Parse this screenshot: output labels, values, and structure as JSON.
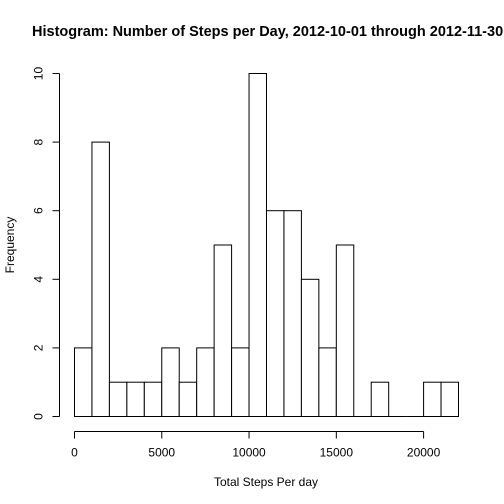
{
  "chart_data": {
    "type": "bar",
    "title": "Histogram: Number of Steps per Day, 2012-10-01 through 2012-11-30",
    "xlabel": "Total Steps Per day",
    "ylabel": "Frequency",
    "bins": [
      [
        0,
        1000
      ],
      [
        1000,
        2000
      ],
      [
        2000,
        3000
      ],
      [
        3000,
        4000
      ],
      [
        4000,
        5000
      ],
      [
        5000,
        6000
      ],
      [
        6000,
        7000
      ],
      [
        7000,
        8000
      ],
      [
        8000,
        9000
      ],
      [
        9000,
        10000
      ],
      [
        10000,
        11000
      ],
      [
        11000,
        12000
      ],
      [
        12000,
        13000
      ],
      [
        13000,
        14000
      ],
      [
        14000,
        15000
      ],
      [
        15000,
        16000
      ],
      [
        16000,
        17000
      ],
      [
        17000,
        18000
      ],
      [
        18000,
        19000
      ],
      [
        19000,
        20000
      ],
      [
        20000,
        21000
      ],
      [
        21000,
        22000
      ]
    ],
    "values": [
      2,
      8,
      1,
      1,
      1,
      2,
      1,
      2,
      5,
      2,
      10,
      6,
      6,
      4,
      2,
      5,
      0,
      1,
      0,
      0,
      1,
      1
    ],
    "xlim": [
      0,
      22000
    ],
    "ylim": [
      0,
      10
    ],
    "x_ticks": [
      0,
      5000,
      10000,
      15000,
      20000
    ],
    "x_tick_labels": [
      "0",
      "5000",
      "10000",
      "15000",
      "20000"
    ],
    "y_ticks": [
      0,
      2,
      4,
      6,
      8,
      10
    ],
    "y_tick_labels": [
      "0",
      "2",
      "4",
      "6",
      "8",
      "10"
    ],
    "grid": false,
    "legend": "none",
    "bar_fill": "#ffffff",
    "bar_stroke": "#000000"
  }
}
